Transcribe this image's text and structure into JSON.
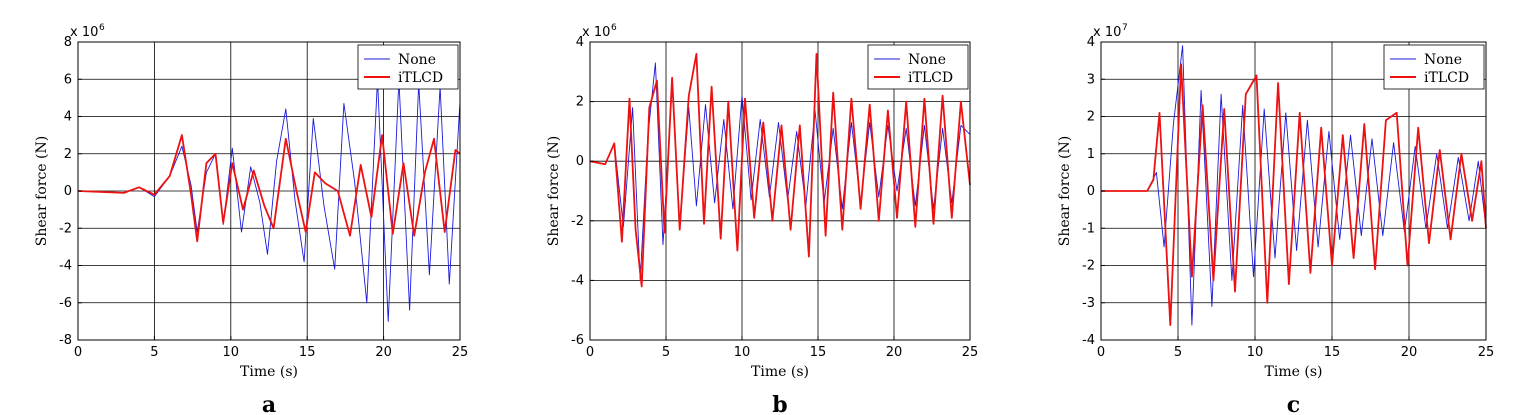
{
  "chart_data": [
    {
      "type": "line",
      "panel_label": "a",
      "xlabel": "Time (s)",
      "ylabel": "Shear force (N)",
      "multiplier": "x 10",
      "multiplier_exp": "6",
      "xlim": [
        0,
        25
      ],
      "ylim": [
        -8,
        8
      ],
      "xticks": [
        0,
        5,
        10,
        15,
        20,
        25
      ],
      "yticks": [
        -8,
        -6,
        -4,
        -2,
        0,
        2,
        4,
        6,
        8
      ],
      "grid": true,
      "legend": "top-right",
      "series": [
        {
          "name": "None",
          "color": "#1a1adb",
          "x": [
            0,
            3,
            4,
            5,
            6,
            6.8,
            7.4,
            7.8,
            8.4,
            9.0,
            9.5,
            10.1,
            10.7,
            11.3,
            11.9,
            12.4,
            13.0,
            13.6,
            14.2,
            14.8,
            15.4,
            16.1,
            16.8,
            17.4,
            18.1,
            18.9,
            19.6,
            20.3,
            21.0,
            21.7,
            22.3,
            23.0,
            23.7,
            24.3,
            25.0
          ],
          "y": [
            0,
            -0.1,
            0.2,
            -0.3,
            0.8,
            2.4,
            0.3,
            -2.2,
            1.0,
            2.0,
            -1.8,
            2.3,
            -2.2,
            1.3,
            -0.6,
            -3.4,
            1.6,
            4.4,
            -0.5,
            -3.8,
            3.9,
            -0.8,
            -4.2,
            4.7,
            0.5,
            -6.0,
            6.0,
            -7.0,
            6.0,
            -6.4,
            5.8,
            -4.5,
            5.6,
            -5.0,
            4.8
          ]
        },
        {
          "name": "iTLCD",
          "color": "#ee1111",
          "x": [
            0,
            3,
            4,
            5,
            6,
            6.8,
            7.4,
            7.8,
            8.4,
            9.0,
            9.5,
            10.1,
            10.8,
            11.5,
            12.2,
            12.8,
            13.6,
            14.3,
            14.9,
            15.5,
            16.2,
            17.0,
            17.8,
            18.5,
            19.2,
            19.9,
            20.6,
            21.3,
            22.0,
            22.7,
            23.3,
            24.0,
            24.7,
            25.0
          ],
          "y": [
            0,
            -0.1,
            0.2,
            -0.2,
            0.8,
            3.0,
            -0.2,
            -2.7,
            1.5,
            2.0,
            -1.7,
            1.5,
            -1.0,
            1.1,
            -0.8,
            -2.0,
            2.8,
            0.0,
            -2.2,
            1.0,
            0.4,
            0.0,
            -2.4,
            1.4,
            -1.4,
            3.0,
            -2.3,
            1.5,
            -2.4,
            1.0,
            2.8,
            -2.2,
            2.2,
            2.0
          ]
        }
      ]
    },
    {
      "type": "line",
      "panel_label": "b",
      "xlabel": "Time (s)",
      "ylabel": "Shear force (N)",
      "multiplier": "x 10",
      "multiplier_exp": "6",
      "xlim": [
        0,
        25
      ],
      "ylim": [
        -6,
        4
      ],
      "xticks": [
        0,
        5,
        10,
        15,
        20,
        25
      ],
      "yticks": [
        -6,
        -4,
        -2,
        0,
        2,
        4
      ],
      "grid": true,
      "legend": "top-right",
      "series": [
        {
          "name": "None",
          "color": "#1a1adb",
          "x": [
            0,
            1.0,
            1.6,
            2.2,
            2.8,
            3.3,
            3.8,
            4.3,
            4.8,
            5.4,
            5.9,
            6.5,
            7.0,
            7.6,
            8.2,
            8.8,
            9.4,
            10.0,
            10.6,
            11.2,
            11.8,
            12.4,
            13.0,
            13.6,
            14.2,
            14.8,
            15.4,
            16.0,
            16.6,
            17.2,
            17.8,
            18.4,
            19.0,
            19.6,
            20.2,
            20.8,
            21.4,
            22.0,
            22.6,
            23.2,
            23.8,
            24.4,
            25.0
          ],
          "y": [
            0,
            -0.1,
            0.6,
            -2.2,
            1.8,
            -4.0,
            0.8,
            3.3,
            -2.8,
            2.6,
            -2.2,
            1.8,
            -1.5,
            1.9,
            -1.4,
            1.4,
            -1.6,
            2.2,
            -1.3,
            1.4,
            -1.2,
            1.3,
            -1.3,
            1.0,
            -1.5,
            1.7,
            -1.4,
            1.1,
            -1.6,
            1.3,
            -1.4,
            1.3,
            -1.2,
            1.2,
            -1.0,
            1.1,
            -1.5,
            1.2,
            -1.6,
            1.1,
            -1.4,
            1.2,
            0.9
          ]
        },
        {
          "name": "iTLCD",
          "color": "#ee1111",
          "x": [
            0,
            1.0,
            1.6,
            2.1,
            2.6,
            3.0,
            3.4,
            3.9,
            4.4,
            4.9,
            5.4,
            5.9,
            6.5,
            7.0,
            7.5,
            8.0,
            8.6,
            9.1,
            9.7,
            10.2,
            10.8,
            11.4,
            12.0,
            12.6,
            13.2,
            13.8,
            14.4,
            14.9,
            15.5,
            16.0,
            16.6,
            17.2,
            17.8,
            18.4,
            19.0,
            19.6,
            20.2,
            20.8,
            21.4,
            22.0,
            22.6,
            23.2,
            23.8,
            24.4,
            25.0
          ],
          "y": [
            0,
            -0.1,
            0.6,
            -2.7,
            2.1,
            -2.3,
            -4.2,
            1.8,
            2.7,
            -2.4,
            2.8,
            -2.3,
            2.2,
            3.6,
            -2.1,
            2.5,
            -2.6,
            2.0,
            -3.0,
            2.1,
            -1.9,
            1.3,
            -2.0,
            1.2,
            -2.3,
            1.2,
            -3.2,
            3.6,
            -2.5,
            2.3,
            -2.3,
            2.1,
            -1.6,
            1.9,
            -2.0,
            1.7,
            -1.9,
            2.0,
            -2.2,
            2.1,
            -2.1,
            2.2,
            -1.9,
            2.0,
            -0.8
          ]
        }
      ]
    },
    {
      "type": "line",
      "panel_label": "c",
      "xlabel": "Time (s)",
      "ylabel": "Shear force (N)",
      "multiplier": "x 10",
      "multiplier_exp": "7",
      "xlim": [
        0,
        25
      ],
      "ylim": [
        -4,
        4
      ],
      "xticks": [
        0,
        5,
        10,
        15,
        20,
        25
      ],
      "yticks": [
        -4,
        -3,
        -2,
        -1,
        0,
        1,
        2,
        3,
        4
      ],
      "grid": true,
      "legend": "top-right",
      "series": [
        {
          "name": "None",
          "color": "#1a1adb",
          "x": [
            0,
            3.0,
            3.6,
            4.1,
            4.7,
            5.3,
            5.9,
            6.5,
            7.2,
            7.8,
            8.5,
            9.2,
            9.9,
            10.6,
            11.3,
            12.0,
            12.7,
            13.4,
            14.1,
            14.8,
            15.5,
            16.2,
            16.9,
            17.6,
            18.3,
            19.0,
            19.7,
            20.4,
            21.1,
            21.8,
            22.5,
            23.2,
            23.9,
            24.5,
            25.0
          ],
          "y": [
            0,
            0.0,
            0.5,
            -1.5,
            1.8,
            3.9,
            -3.6,
            2.7,
            -3.1,
            2.6,
            -2.4,
            2.3,
            -2.3,
            2.2,
            -1.8,
            2.1,
            -1.6,
            1.9,
            -1.5,
            1.6,
            -1.3,
            1.5,
            -1.2,
            1.4,
            -1.2,
            1.3,
            -1.1,
            1.2,
            -1.0,
            1.0,
            -1.0,
            0.9,
            -0.8,
            0.8,
            -1.0
          ]
        },
        {
          "name": "iTLCD",
          "color": "#ee1111",
          "x": [
            0,
            3.0,
            3.4,
            3.8,
            4.5,
            5.2,
            5.9,
            6.6,
            7.3,
            8.0,
            8.7,
            9.4,
            10.1,
            10.8,
            11.5,
            12.2,
            12.9,
            13.6,
            14.3,
            15.0,
            15.7,
            16.4,
            17.1,
            17.8,
            18.5,
            19.2,
            19.9,
            20.6,
            21.3,
            22.0,
            22.7,
            23.4,
            24.1,
            24.7,
            25.0
          ],
          "y": [
            0,
            0.0,
            0.3,
            2.1,
            -3.6,
            3.4,
            -2.3,
            2.3,
            -2.4,
            2.2,
            -2.7,
            2.6,
            3.1,
            -3.0,
            2.9,
            -2.5,
            2.1,
            -2.2,
            1.7,
            -2.0,
            1.5,
            -1.8,
            1.8,
            -2.1,
            1.9,
            2.1,
            -2.0,
            1.7,
            -1.4,
            1.1,
            -1.3,
            1.0,
            -0.8,
            0.8,
            -1.0
          ]
        }
      ]
    }
  ]
}
